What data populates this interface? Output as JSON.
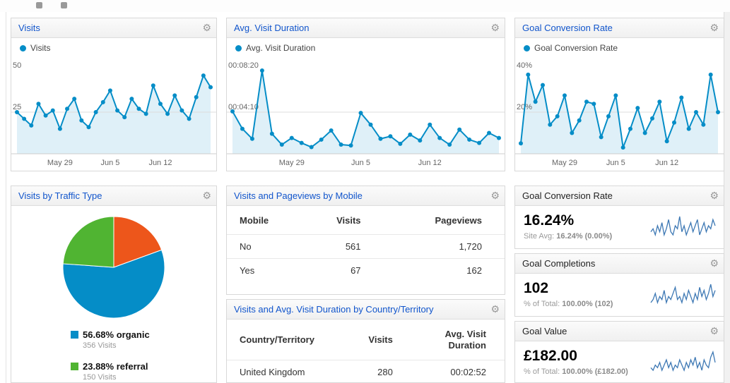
{
  "icons": {
    "gear": "⚙"
  },
  "widgets": {
    "visits_chart": {
      "title": "Visits",
      "legend": "Visits"
    },
    "duration_chart": {
      "title": "Avg. Visit Duration",
      "legend": "Avg. Visit Duration"
    },
    "conversion_chart": {
      "title": "Goal Conversion Rate",
      "legend": "Goal Conversion Rate"
    },
    "traffic_pie": {
      "title": "Visits by Traffic Type",
      "legend": [
        {
          "pct": "56.68%",
          "label": "organic",
          "visits": "356 Visits",
          "color": "#058DC7"
        },
        {
          "pct": "23.88%",
          "label": "referral",
          "visits": "150 Visits",
          "color": "#50B432"
        }
      ]
    },
    "mobile_table": {
      "title": "Visits and Pageviews by Mobile",
      "headers": [
        "Mobile",
        "Visits",
        "Pageviews"
      ],
      "rows": [
        [
          "No",
          "561",
          "1,720"
        ],
        [
          "Yes",
          "67",
          "162"
        ]
      ]
    },
    "country_table": {
      "title": "Visits and Avg. Visit Duration by Country/Territory",
      "headers": [
        "Country/Territory",
        "Visits",
        "Avg. Visit Duration"
      ],
      "rows": [
        [
          "United Kingdom",
          "280",
          "00:02:52"
        ]
      ]
    },
    "goal_rate_card": {
      "title": "Goal Conversion Rate",
      "value": "16.24%",
      "sub_label": "Site Avg:",
      "sub_value": "16.24% (0.00%)"
    },
    "goal_completions_card": {
      "title": "Goal Completions",
      "value": "102",
      "sub_label": "% of Total:",
      "sub_value": "100.00% (102)"
    },
    "goal_value_card": {
      "title": "Goal Value",
      "value": "£182.00",
      "sub_label": "% of Total:",
      "sub_value": "100.00% (£182.00)"
    }
  },
  "chart_data": [
    {
      "id": "visits",
      "type": "area",
      "title": "Visits",
      "color": "#058DC7",
      "ymax": 50,
      "gridlines": [
        {
          "value": 50,
          "label": "50",
          "line": false
        },
        {
          "value": 25,
          "label": "25",
          "line": true
        }
      ],
      "x_ticks": [
        {
          "index": 6,
          "label": "May 29"
        },
        {
          "index": 13,
          "label": "Jun 5"
        },
        {
          "index": 20,
          "label": "Jun 12"
        }
      ],
      "values": [
        25,
        21,
        17,
        30,
        23,
        26,
        15,
        27,
        33,
        20,
        16,
        25,
        31,
        38,
        26,
        22,
        33,
        27,
        24,
        41,
        30,
        24,
        35,
        26,
        21,
        34,
        47,
        40
      ]
    },
    {
      "id": "duration",
      "type": "area",
      "title": "Avg. Visit Duration",
      "color": "#058DC7",
      "ymax": 500,
      "gridlines": [
        {
          "value": 500,
          "label": "00:08:20",
          "line": false
        },
        {
          "value": 250,
          "label": "00:04:10",
          "line": true
        }
      ],
      "x_ticks": [
        {
          "index": 6,
          "label": "May 29"
        },
        {
          "index": 13,
          "label": "Jun 5"
        },
        {
          "index": 20,
          "label": "Jun 12"
        }
      ],
      "values": [
        255,
        150,
        90,
        500,
        120,
        55,
        95,
        65,
        40,
        85,
        140,
        55,
        50,
        245,
        175,
        90,
        105,
        60,
        115,
        80,
        175,
        95,
        55,
        145,
        85,
        65,
        125,
        95
      ]
    },
    {
      "id": "conversion",
      "type": "area",
      "title": "Goal Conversion Rate",
      "color": "#058DC7",
      "ymax": 40,
      "gridlines": [
        {
          "value": 40,
          "label": "40%",
          "line": false
        },
        {
          "value": 20,
          "label": "20%",
          "line": true
        }
      ],
      "x_ticks": [
        {
          "index": 6,
          "label": "May 29"
        },
        {
          "index": 13,
          "label": "Jun 5"
        },
        {
          "index": 20,
          "label": "Jun 12"
        }
      ],
      "values": [
        5,
        38,
        25,
        33,
        14,
        18,
        28,
        10,
        16,
        25,
        24,
        8,
        18,
        28,
        3,
        12,
        22,
        10,
        17,
        25,
        6,
        15,
        27,
        12,
        20,
        14,
        38,
        20
      ]
    },
    {
      "id": "traffic_pie",
      "type": "pie",
      "title": "Visits by Traffic Type",
      "slices": [
        {
          "label": "",
          "pct": 19.44,
          "color": "#ED561B"
        },
        {
          "label": "organic",
          "pct": 56.68,
          "color": "#058DC7"
        },
        {
          "label": "referral",
          "pct": 23.88,
          "color": "#50B432"
        }
      ]
    },
    {
      "id": "spark_rate",
      "type": "sparkline",
      "color": "#3d78b4",
      "values": [
        4,
        5,
        3,
        6,
        4,
        7,
        3,
        5,
        8,
        4,
        3,
        6,
        5,
        9,
        4,
        6,
        3,
        5,
        7,
        4,
        6,
        8,
        3,
        5,
        7,
        4,
        6,
        5,
        8,
        6
      ]
    },
    {
      "id": "spark_completions",
      "type": "sparkline",
      "color": "#3d78b4",
      "values": [
        3,
        4,
        6,
        3,
        5,
        4,
        7,
        3,
        5,
        4,
        6,
        8,
        4,
        5,
        3,
        6,
        4,
        7,
        5,
        3,
        6,
        4,
        8,
        5,
        7,
        4,
        6,
        9,
        5,
        7
      ]
    },
    {
      "id": "spark_value",
      "type": "sparkline",
      "color": "#3d78b4",
      "values": [
        4,
        3,
        5,
        4,
        6,
        3,
        5,
        7,
        4,
        6,
        3,
        5,
        4,
        7,
        5,
        3,
        6,
        4,
        7,
        5,
        8,
        4,
        6,
        3,
        7,
        5,
        4,
        8,
        10,
        6
      ]
    }
  ]
}
